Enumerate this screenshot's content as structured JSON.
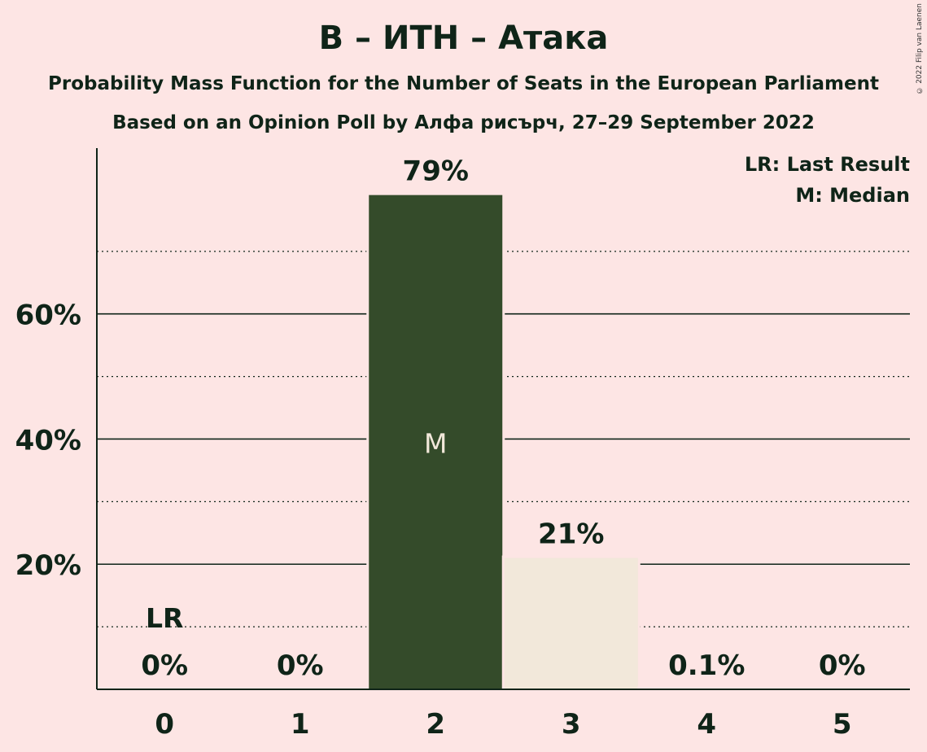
{
  "copyright": "© 2022 Filip van Laenen",
  "chart_data": {
    "type": "bar",
    "title": "В – ИТН – Атака",
    "subtitle": "Probability Mass Function for the Number of Seats in the European Parliament",
    "subtitle2": "Based on an Opinion Poll by Алфа рисърч, 27–29 September 2022",
    "categories": [
      "0",
      "1",
      "2",
      "3",
      "4",
      "5"
    ],
    "values": [
      0,
      0,
      79,
      21,
      0.1,
      0
    ],
    "bar_labels": [
      "0%",
      "0%",
      "79%",
      "21%",
      "0.1%",
      "0%"
    ],
    "median_index": 2,
    "median_mark": "M",
    "last_result_index": 0,
    "last_result_mark": "LR",
    "ylim": [
      0,
      86.5
    ],
    "yticks": [
      20,
      40,
      60
    ],
    "ytick_labels": [
      "20%",
      "40%",
      "60%"
    ],
    "minor_gridlines": [
      10,
      30,
      50,
      70
    ],
    "legend": [
      "LR: Last Result",
      "M: Median"
    ],
    "legend_position": "top-right",
    "colors": {
      "background": "#fde5e4",
      "median_bar": "#344b2a",
      "other_bar": "#f2e8da",
      "text": "#0f2418"
    }
  }
}
